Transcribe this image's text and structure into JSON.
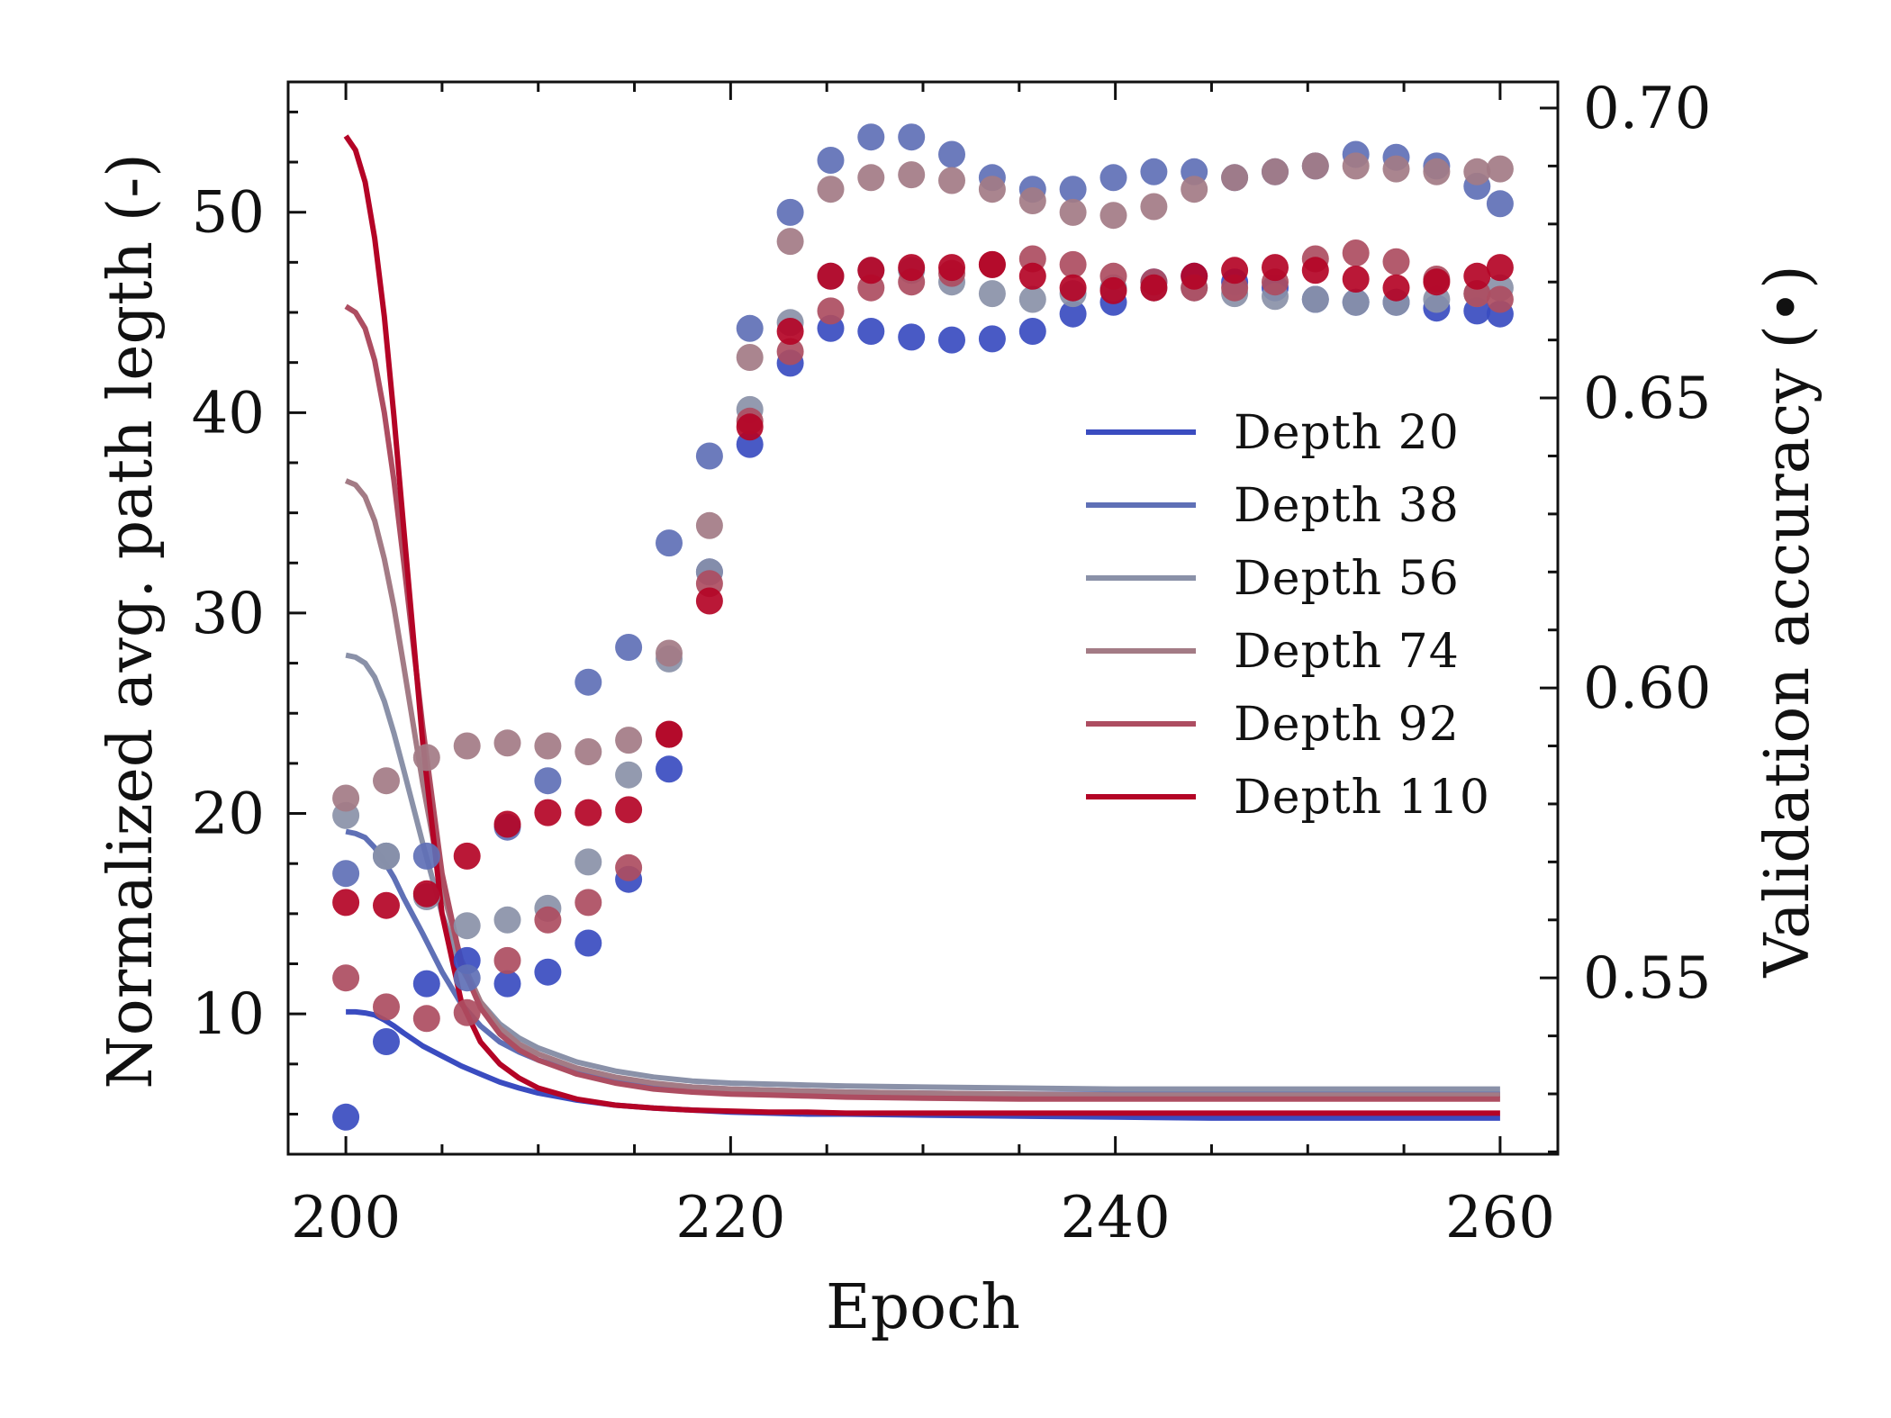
{
  "chart_data": {
    "type": "line+scatter",
    "title": "",
    "xlabel": "Epoch",
    "ylabel_left": "Normalized avg. path legth (-)",
    "ylabel_right": "Validation accuracy (•)",
    "xlim": [
      197,
      263
    ],
    "ylim_left": [
      3,
      56.5
    ],
    "ylim_right": [
      0.5196,
      0.7045
    ],
    "xticks": [
      200,
      220,
      240,
      260
    ],
    "xtick_labels": [
      "200",
      "220",
      "240",
      "260"
    ],
    "yticks_left": [
      10,
      20,
      30,
      40,
      50
    ],
    "ytick_labels_left": [
      "10",
      "20",
      "30",
      "40",
      "50"
    ],
    "yticks_right": [
      0.55,
      0.6,
      0.65,
      0.7
    ],
    "ytick_labels_right": [
      "0.55",
      "0.60",
      "0.65",
      "0.70"
    ],
    "legend_position": "center-right",
    "grid": false,
    "line_x": [
      200,
      200.5,
      201,
      201.5,
      202,
      202.5,
      203,
      204,
      205,
      206,
      207,
      208,
      209,
      210,
      212,
      214,
      216,
      218,
      220,
      222,
      224,
      226,
      230,
      235,
      240,
      245,
      250,
      255,
      260
    ],
    "scatter_x": [
      200,
      202.1,
      204.2,
      206.3,
      208.4,
      210.5,
      212.6,
      214.7,
      216.8,
      218.9,
      221.0,
      223.1,
      225.2,
      227.3,
      229.4,
      231.5,
      233.6,
      235.7,
      237.8,
      239.9,
      242.0,
      244.1,
      246.2,
      248.3,
      250.4,
      252.5,
      254.6,
      256.7,
      258.8,
      260
    ],
    "series": [
      {
        "name": "Depth 20",
        "color": "#3a4cc0",
        "path_length": [
          10.1,
          10.1,
          10.05,
          9.95,
          9.7,
          9.4,
          9.05,
          8.4,
          7.9,
          7.4,
          7.0,
          6.6,
          6.3,
          6.05,
          5.7,
          5.45,
          5.3,
          5.2,
          5.1,
          5.05,
          5.0,
          5.0,
          4.95,
          4.9,
          4.85,
          4.8,
          4.8,
          4.8,
          4.8
        ],
        "accuracy": [
          0.526,
          0.539,
          0.549,
          0.553,
          0.549,
          0.551,
          0.556,
          0.567,
          0.586,
          0.62,
          0.642,
          0.656,
          0.662,
          0.6615,
          0.6605,
          0.66,
          0.6602,
          0.6615,
          0.6645,
          0.6665,
          0.67,
          0.671,
          0.67,
          0.669,
          0.667,
          0.6665,
          0.6665,
          0.6655,
          0.665,
          0.6645
        ]
      },
      {
        "name": "Depth 38",
        "color": "#5f70b6",
        "path_length": [
          19.1,
          19.0,
          18.8,
          18.3,
          17.6,
          16.8,
          15.8,
          14.0,
          12.1,
          10.5,
          9.4,
          8.6,
          8.1,
          7.7,
          7.1,
          6.7,
          6.5,
          6.35,
          6.25,
          6.2,
          6.15,
          6.1,
          6.05,
          6.0,
          6.0,
          6.0,
          6.0,
          6.0,
          6.0
        ],
        "accuracy": [
          0.568,
          0.571,
          0.571,
          0.55,
          0.576,
          0.584,
          0.601,
          0.607,
          0.625,
          0.64,
          0.662,
          0.682,
          0.691,
          0.695,
          0.695,
          0.692,
          0.688,
          0.686,
          0.686,
          0.688,
          0.689,
          0.689,
          0.688,
          0.689,
          0.69,
          0.692,
          0.6915,
          0.69,
          0.6865,
          0.6835
        ]
      },
      {
        "name": "Depth 56",
        "color": "#8a91a8",
        "path_length": [
          27.9,
          27.8,
          27.5,
          26.8,
          25.6,
          24.0,
          22.2,
          18.5,
          15.0,
          12.3,
          10.6,
          9.5,
          8.8,
          8.3,
          7.6,
          7.15,
          6.85,
          6.65,
          6.55,
          6.5,
          6.45,
          6.4,
          6.35,
          6.3,
          6.25,
          6.25,
          6.25,
          6.25,
          6.25
        ],
        "accuracy": [
          0.578,
          0.571,
          0.564,
          0.559,
          0.56,
          0.562,
          0.57,
          0.585,
          0.605,
          0.62,
          0.648,
          0.663,
          0.671,
          0.672,
          0.672,
          0.67,
          0.668,
          0.667,
          0.668,
          0.669,
          0.669,
          0.669,
          0.668,
          0.6675,
          0.667,
          0.6665,
          0.6665,
          0.667,
          0.668,
          0.669
        ]
      },
      {
        "name": "Depth 74",
        "color": "#a37b85",
        "path_length": [
          36.6,
          36.4,
          35.8,
          34.6,
          32.7,
          30.3,
          27.4,
          21.5,
          16.3,
          12.7,
          10.6,
          9.3,
          8.5,
          8.0,
          7.3,
          6.85,
          6.55,
          6.35,
          6.25,
          6.2,
          6.15,
          6.1,
          6.05,
          6.0,
          5.95,
          5.95,
          5.95,
          5.95,
          5.95
        ],
        "accuracy": [
          0.581,
          0.584,
          0.588,
          0.59,
          0.5905,
          0.59,
          0.589,
          0.591,
          0.606,
          0.628,
          0.657,
          0.677,
          0.686,
          0.688,
          0.6885,
          0.6875,
          0.686,
          0.684,
          0.682,
          0.6815,
          0.683,
          0.686,
          0.688,
          0.689,
          0.69,
          0.69,
          0.6895,
          0.689,
          0.689,
          0.6895
        ]
      },
      {
        "name": "Depth 92",
        "color": "#ad4d61",
        "path_length": [
          45.3,
          45.0,
          44.2,
          42.6,
          40.0,
          36.6,
          32.6,
          24.3,
          17.0,
          12.5,
          10.3,
          9.0,
          8.2,
          7.7,
          7.0,
          6.55,
          6.25,
          6.1,
          6.0,
          5.95,
          5.9,
          5.85,
          5.8,
          5.75,
          5.75,
          5.75,
          5.75,
          5.75,
          5.75
        ],
        "accuracy": [
          0.55,
          0.545,
          0.543,
          0.544,
          0.553,
          0.56,
          0.563,
          0.569,
          0.592,
          0.618,
          0.646,
          0.658,
          0.665,
          0.669,
          0.67,
          0.6715,
          0.673,
          0.674,
          0.673,
          0.671,
          0.67,
          0.669,
          0.669,
          0.67,
          0.674,
          0.675,
          0.6735,
          0.6705,
          0.668,
          0.667
        ]
      },
      {
        "name": "Depth 110",
        "color": "#b40426",
        "path_length": [
          53.8,
          53.1,
          51.5,
          48.7,
          44.8,
          39.8,
          34.3,
          23.5,
          15.0,
          10.6,
          8.6,
          7.5,
          6.8,
          6.3,
          5.75,
          5.45,
          5.3,
          5.2,
          5.15,
          5.1,
          5.1,
          5.05,
          5.05,
          5.05,
          5.05,
          5.05,
          5.05,
          5.05,
          5.05
        ],
        "accuracy": [
          0.563,
          0.5625,
          0.5645,
          0.571,
          0.5765,
          0.5785,
          0.5785,
          0.579,
          0.592,
          0.615,
          0.645,
          0.6615,
          0.671,
          0.672,
          0.6725,
          0.6725,
          0.673,
          0.671,
          0.669,
          0.6685,
          0.669,
          0.671,
          0.672,
          0.6725,
          0.672,
          0.6705,
          0.669,
          0.67,
          0.671,
          0.6725
        ]
      }
    ]
  }
}
